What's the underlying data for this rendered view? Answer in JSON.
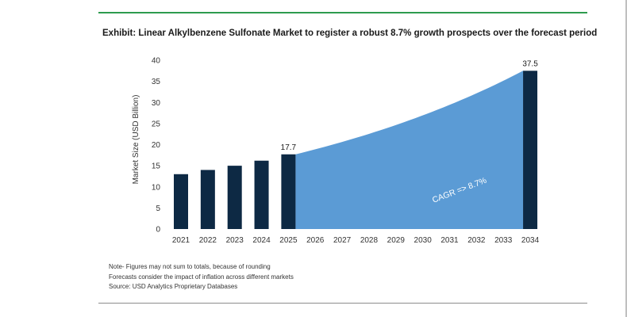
{
  "title": "Exhibit: Linear Alkylbenzene Sulfonate Market to register a robust 8.7% growth prospects over the forecast period",
  "colors": {
    "bar": "#0d2944",
    "area": "#5b9bd5",
    "rule_top": "#2e9b4e",
    "rule_bottom": "#8c8c8c"
  },
  "chart_data": {
    "type": "bar",
    "title": "Exhibit: Linear Alkylbenzene Sulfonate Market to register a robust 8.7% growth prospects over the forecast period",
    "categories": [
      "2021",
      "2022",
      "2023",
      "2024",
      "2025",
      "2026",
      "2027",
      "2028",
      "2029",
      "2030",
      "2031",
      "2032",
      "2033",
      "2034"
    ],
    "values": [
      13.0,
      14.0,
      15.0,
      16.2,
      17.7,
      null,
      null,
      null,
      null,
      null,
      null,
      null,
      null,
      37.5
    ],
    "data_labels": [
      {
        "category": "2025",
        "text": "17.7"
      },
      {
        "category": "2034",
        "text": "37.5"
      }
    ],
    "forecast_area": {
      "from": "2025",
      "to": "2034",
      "start_value": 17.7,
      "end_value": 37.5,
      "annotation": "CAGR =>  8.7%"
    },
    "xlabel": "",
    "ylabel": "Market Size (USD Billion)",
    "ylim": [
      0,
      40
    ],
    "yticks": [
      0,
      5,
      10,
      15,
      20,
      25,
      30,
      35,
      40
    ],
    "grid": false,
    "legend": "none"
  },
  "notes": [
    "Note- Figures may not sum to totals, because of rounding",
    "Forecasts consider the impact of inflation across different markets",
    "Source: USD Analytics Proprietary Databases"
  ]
}
